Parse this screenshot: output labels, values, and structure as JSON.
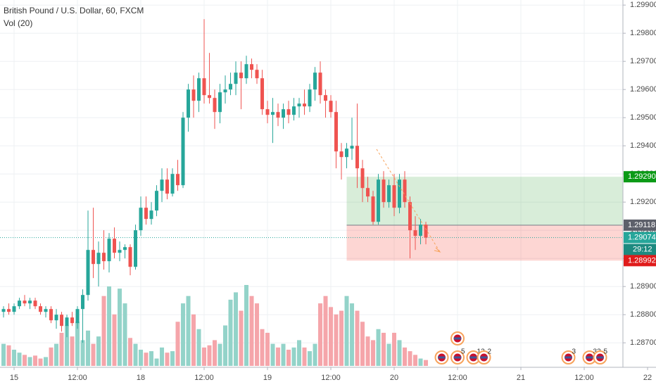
{
  "chart_data": {
    "type": "candlestick",
    "title": "British Pound / U.S. Dollar, 60, FXCM",
    "indicator": "Vol (20)",
    "x": [
      -2,
      -1,
      0,
      1,
      2,
      3,
      4,
      5,
      6,
      7,
      8,
      9,
      10,
      11,
      12,
      13,
      14,
      15,
      16,
      17,
      18,
      19,
      20,
      21,
      22,
      23,
      24,
      25,
      26,
      27,
      28,
      29,
      30,
      31,
      32,
      33,
      34,
      35,
      36,
      37,
      38,
      39,
      40,
      41,
      42,
      43,
      44,
      45,
      46,
      47,
      48,
      49,
      50,
      51,
      52,
      53,
      54,
      55,
      56,
      57,
      58,
      59,
      60,
      61,
      62,
      63,
      64,
      65,
      66,
      67,
      68,
      69,
      70,
      71,
      72,
      73,
      74,
      75,
      76,
      77,
      78
    ],
    "open": [
      1.2881,
      1.2882,
      1.2881,
      1.2883,
      1.2885,
      1.2884,
      1.2885,
      1.2883,
      1.2881,
      1.2882,
      1.2878,
      1.288,
      1.2876,
      1.2879,
      1.2877,
      1.2882,
      1.2887,
      1.2903,
      1.2898,
      1.2902,
      1.2899,
      1.2907,
      1.2902,
      1.2903,
      1.2904,
      1.2897,
      1.291,
      1.2918,
      1.2914,
      1.2917,
      1.2924,
      1.2928,
      1.2923,
      1.293,
      1.2926,
      1.295,
      1.296,
      1.2956,
      1.2964,
      1.2958,
      1.2957,
      1.2952,
      1.2959,
      1.296,
      1.2962,
      1.2966,
      1.2964,
      1.2969,
      1.2967,
      1.2964,
      1.2953,
      1.2951,
      1.2952,
      1.295,
      1.2953,
      1.2951,
      1.2954,
      1.2955,
      1.2954,
      1.296,
      1.2966,
      1.2958,
      1.2956,
      1.2952,
      1.2938,
      1.2936,
      1.2939,
      1.294,
      1.2932,
      1.2925,
      1.2922,
      1.2913,
      1.2928,
      1.292,
      1.2926,
      1.2918,
      1.2928,
      1.292,
      1.291,
      1.2908,
      1.2912
    ],
    "high": [
      1.2883,
      1.2884,
      1.2884,
      1.2886,
      1.2887,
      1.2886,
      1.2886,
      1.2884,
      1.2883,
      1.2883,
      1.2882,
      1.2881,
      1.288,
      1.2881,
      1.2883,
      1.2889,
      1.2917,
      1.2918,
      1.2906,
      1.291,
      1.2909,
      1.2911,
      1.2906,
      1.2905,
      1.2905,
      1.2912,
      1.2922,
      1.2922,
      1.292,
      1.2926,
      1.2932,
      1.2932,
      1.2932,
      1.2935,
      1.2952,
      1.2962,
      1.2965,
      1.2966,
      1.2985,
      1.2973,
      1.296,
      1.2962,
      1.2965,
      1.2966,
      1.297,
      1.297,
      1.2972,
      1.2971,
      1.2969,
      1.2967,
      1.2956,
      1.2957,
      1.2955,
      1.2955,
      1.2956,
      1.2957,
      1.2957,
      1.296,
      1.2962,
      1.2968,
      1.297,
      1.296,
      1.2958,
      1.2956,
      1.2941,
      1.2941,
      1.295,
      1.2955,
      1.2935,
      1.2929,
      1.2924,
      1.293,
      1.2931,
      1.2928,
      1.293,
      1.293,
      1.2931,
      1.2922,
      1.2915,
      1.2914,
      1.2913
    ],
    "low": [
      1.2879,
      1.288,
      1.288,
      1.2882,
      1.2883,
      1.2882,
      1.2882,
      1.288,
      1.2879,
      1.2877,
      1.2875,
      1.2874,
      1.2872,
      1.2876,
      1.2875,
      1.287,
      1.2885,
      1.2893,
      1.289,
      1.2896,
      1.2895,
      1.29,
      1.2899,
      1.29,
      1.2894,
      1.2896,
      1.2908,
      1.2912,
      1.2912,
      1.2915,
      1.292,
      1.2921,
      1.2922,
      1.2924,
      1.2925,
      1.2945,
      1.295,
      1.2952,
      1.2955,
      1.2955,
      1.2946,
      1.2948,
      1.2955,
      1.2958,
      1.2958,
      1.2953,
      1.2962,
      1.2964,
      1.2962,
      1.2951,
      1.2948,
      1.2941,
      1.2947,
      1.2946,
      1.2948,
      1.2949,
      1.295,
      1.2951,
      1.2952,
      1.2956,
      1.2955,
      1.295,
      1.295,
      1.2932,
      1.2928,
      1.2932,
      1.2935,
      1.2925,
      1.292,
      1.292,
      1.2912,
      1.2912,
      1.2918,
      1.2918,
      1.2915,
      1.2916,
      1.2918,
      1.29,
      1.2903,
      1.2905,
      1.2905
    ],
    "close": [
      1.2882,
      1.2881,
      1.2883,
      1.2885,
      1.2884,
      1.2885,
      1.2883,
      1.2881,
      1.2882,
      1.2878,
      1.288,
      1.2876,
      1.2879,
      1.2877,
      1.2882,
      1.2887,
      1.2903,
      1.2898,
      1.2902,
      1.2899,
      1.2907,
      1.2902,
      1.2903,
      1.2904,
      1.2897,
      1.291,
      1.2918,
      1.2914,
      1.2917,
      1.2924,
      1.2928,
      1.2923,
      1.293,
      1.2926,
      1.295,
      1.296,
      1.2956,
      1.2964,
      1.2958,
      1.2957,
      1.2952,
      1.2959,
      1.296,
      1.2962,
      1.2966,
      1.2964,
      1.2969,
      1.2967,
      1.2964,
      1.2953,
      1.2951,
      1.2952,
      1.295,
      1.2953,
      1.2951,
      1.2954,
      1.2955,
      1.2954,
      1.296,
      1.2966,
      1.2958,
      1.2956,
      1.2952,
      1.2938,
      1.2936,
      1.2939,
      1.294,
      1.2932,
      1.2925,
      1.2922,
      1.2913,
      1.2928,
      1.292,
      1.2926,
      1.2918,
      1.2928,
      1.292,
      1.291,
      1.2908,
      1.2912,
      1.29074
    ],
    "volume": [
      30,
      28,
      22,
      18,
      15,
      12,
      14,
      10,
      12,
      25,
      30,
      45,
      55,
      40,
      60,
      35,
      48,
      30,
      40,
      95,
      108,
      70,
      105,
      85,
      38,
      30,
      22,
      18,
      20,
      10,
      25,
      18,
      20,
      60,
      85,
      95,
      70,
      50,
      25,
      28,
      35,
      30,
      55,
      90,
      100,
      75,
      110,
      95,
      85,
      50,
      45,
      30,
      25,
      30,
      22,
      25,
      35,
      25,
      20,
      30,
      85,
      95,
      80,
      70,
      75,
      95,
      85,
      75,
      60,
      40,
      35,
      50,
      45,
      30,
      45,
      35,
      25,
      20,
      15,
      10,
      8
    ],
    "up_color": "#26a69a",
    "down_color": "#ef5350",
    "up_volume_color": "#93d3c9",
    "down_volume_color": "#f5a5aa",
    "xlim": [
      -2.67,
      115.33
    ],
    "xticks": [
      {
        "value": 0,
        "label": "15"
      },
      {
        "value": 12,
        "label": "12:00"
      },
      {
        "value": 24,
        "label": "18"
      },
      {
        "value": 36,
        "label": "12:00"
      },
      {
        "value": 48,
        "label": "19"
      },
      {
        "value": 60,
        "label": "12:00"
      },
      {
        "value": 72,
        "label": "20"
      },
      {
        "value": 84,
        "label": "12:00"
      },
      {
        "value": 96,
        "label": "21"
      },
      {
        "value": 108,
        "label": "12:00"
      },
      {
        "value": 120,
        "label": "22"
      }
    ],
    "ylim": [
      1.28613,
      1.29918
    ],
    "yticks": [
      {
        "value": 1.299,
        "label": "1.29900"
      },
      {
        "value": 1.298,
        "label": "1.29800"
      },
      {
        "value": 1.297,
        "label": "1.29700"
      },
      {
        "value": 1.296,
        "label": "1.29600"
      },
      {
        "value": 1.295,
        "label": "1.29500"
      },
      {
        "value": 1.294,
        "label": "1.29400"
      },
      {
        "value": 1.293,
        "label": "1.29300"
      },
      {
        "value": 1.292,
        "label": "1.29200"
      },
      {
        "value": 1.291,
        "label": "1.29100"
      },
      {
        "value": 1.29,
        "label": "1.29000"
      },
      {
        "value": 1.289,
        "label": "1.28900"
      },
      {
        "value": 1.288,
        "label": "1.28800"
      },
      {
        "value": 1.287,
        "label": "1.28700"
      }
    ],
    "grid": true,
    "position": {
      "start": 63,
      "target": {
        "value": 1.2929,
        "label": "1.29290"
      },
      "entry": {
        "value": 1.29118,
        "label": "1.29118"
      },
      "stop": {
        "value": 1.28992,
        "label": "1.28992"
      }
    },
    "last_price": {
      "value": 1.29074,
      "label": "1.29074"
    },
    "countdown": "29:12",
    "events": [
      {
        "x": 81
      },
      {
        "x": 84
      },
      {
        "x": 84,
        "label": "5"
      },
      {
        "x": 87,
        "label": "12"
      },
      {
        "x": 89,
        "label": "2"
      },
      {
        "x": 105,
        "label": "3"
      },
      {
        "x": 109,
        "label": "33"
      },
      {
        "x": 111,
        "label": "5"
      }
    ]
  }
}
